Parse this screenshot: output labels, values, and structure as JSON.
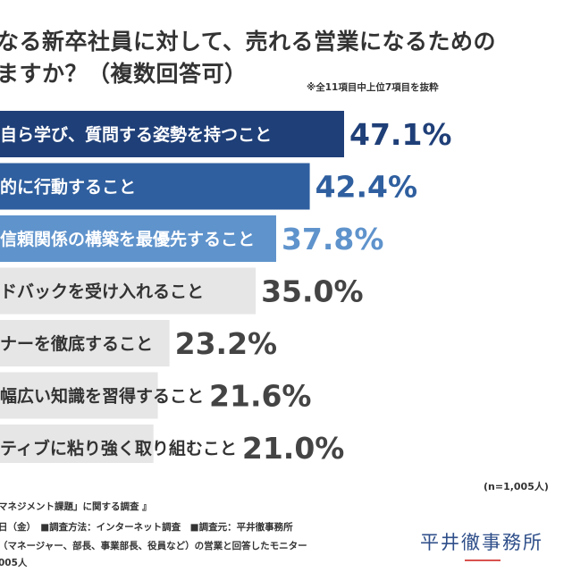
{
  "title": {
    "line1": "なる新卒社員に対して、売れる営業になるための",
    "line2": "ますか？（複数回答可）"
  },
  "note": "※全11項目中上位7項目を抜粋",
  "chart_data": {
    "type": "bar",
    "orientation": "horizontal",
    "categories": [
      "自ら学び、質問する姿勢を持つこと",
      "的に行動すること",
      "信頼関係の構築を最優先すること",
      "ドバックを受け入れること",
      "ナーを徹底すること",
      "幅広い知識を習得すること",
      "ティブに粘り強く取り組むこと"
    ],
    "values": [
      47.1,
      42.4,
      37.8,
      35.0,
      23.2,
      21.6,
      21.0
    ],
    "value_labels": [
      "47.1%",
      "42.4%",
      "37.8%",
      "35.0%",
      "23.2%",
      "21.6%",
      "21.0%"
    ],
    "bar_colors": [
      "#1f3f78",
      "#2f5f9f",
      "#5f93cc",
      "#e6e6e6",
      "#e6e6e6",
      "#e6e6e6",
      "#e6e6e6"
    ],
    "label_colors": [
      "#ffffff",
      "#ffffff",
      "#ffffff",
      "#333333",
      "#333333",
      "#333333",
      "#333333"
    ],
    "value_colors": [
      "#1f3f78",
      "#2f5f9f",
      "#5f93cc",
      "#444444",
      "#444444",
      "#444444",
      "#444444"
    ]
  },
  "sample": "(n=1,005人)",
  "footer": {
    "line1": "マネジメント課題」に関する調査 』",
    "line2": "日（金）　■調査方法：インターネット調査　■調査元：平井徹事務所",
    "line3": "（マネージャー、部長、事業部長、役員など）の営業と回答したモニター",
    "line4": "005人"
  },
  "logo": "平井徹事務所"
}
